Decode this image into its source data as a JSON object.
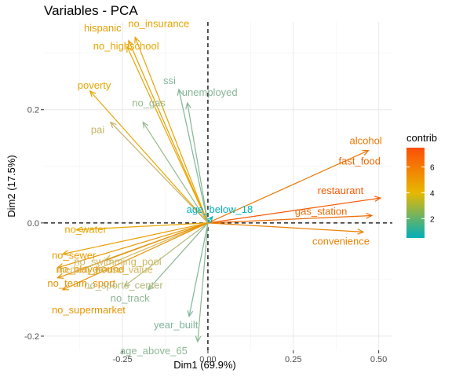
{
  "chart_data": {
    "type": "scatter",
    "subtype": "pca-variable-correlation-arrows",
    "title": "Variables - PCA",
    "xlabel": "Dim1 (69.9%)",
    "ylabel": "Dim2 (17.5%)",
    "xlim": [
      -0.48,
      0.54
    ],
    "ylim": [
      -0.225,
      0.355
    ],
    "x_ticks": [
      -0.25,
      0.0,
      0.25,
      0.5
    ],
    "x_tick_labels": [
      "-0.25",
      "0.00",
      "0.25",
      "0.50"
    ],
    "y_ticks": [
      -0.2,
      0.0,
      0.2
    ],
    "y_tick_labels": [
      "-0.2",
      "0.0",
      "0.2"
    ],
    "grid": true,
    "reference_lines": "dashed at x=0 and y=0",
    "legend": {
      "title": "contrib",
      "placement": "right",
      "type": "gradient",
      "range": [
        0.5,
        7.5
      ],
      "ticks": [
        2,
        4,
        6
      ],
      "colors": [
        "#00AFBB",
        "#E7B800",
        "#FC4E07"
      ]
    },
    "variables": [
      {
        "name": "alcohol",
        "x": 0.47,
        "y": 0.128,
        "contrib": 6.3,
        "color": "#e97804"
      },
      {
        "name": "fast_food",
        "x": 0.47,
        "y": 0.128,
        "contrib": 6.6,
        "color": "#ee6a05",
        "label_pos": "below",
        "arrow": false
      },
      {
        "name": "restaurant",
        "x": 0.505,
        "y": 0.044,
        "contrib": 7.2,
        "color": "#f65a06"
      },
      {
        "name": "gas_station",
        "x": 0.48,
        "y": 0.013,
        "contrib": 6.5,
        "color": "#ed6b05"
      },
      {
        "name": "convenience",
        "x": 0.455,
        "y": -0.016,
        "contrib": 6.1,
        "color": "#e98304"
      },
      {
        "name": "age_below_18",
        "x": 0.013,
        "y": 0.011,
        "contrib": 0.5,
        "color": "#00afbb"
      },
      {
        "name": "hispanic",
        "x": -0.232,
        "y": 0.322,
        "contrib": 5.1,
        "color": "#e8a002"
      },
      {
        "name": "no_insurance",
        "x": -0.213,
        "y": 0.328,
        "contrib": 5.4,
        "color": "#e9a202"
      },
      {
        "name": "no_highschool",
        "x": -0.237,
        "y": 0.312,
        "contrib": 5.0,
        "color": "#e8a502"
      },
      {
        "name": "poverty",
        "x": -0.345,
        "y": 0.233,
        "contrib": 4.8,
        "color": "#e6a704"
      },
      {
        "name": "ssi",
        "x": -0.085,
        "y": 0.236,
        "contrib": 1.8,
        "color": "#80b597"
      },
      {
        "name": "no_gas",
        "x": -0.19,
        "y": 0.178,
        "contrib": 2.2,
        "color": "#97b88b"
      },
      {
        "name": "unemployed",
        "x": -0.06,
        "y": 0.212,
        "contrib": 1.9,
        "color": "#85b594"
      },
      {
        "name": "pai",
        "x": -0.285,
        "y": 0.178,
        "contrib": 3.3,
        "color": "#c6b466"
      },
      {
        "name": "no_water",
        "x": -0.385,
        "y": -0.012,
        "contrib": 5.0,
        "color": "#e8a602"
      },
      {
        "name": "no_sewer",
        "x": -0.425,
        "y": -0.055,
        "contrib": 5.6,
        "color": "#e99d03"
      },
      {
        "name": "no_swimming_pool",
        "x": -0.3,
        "y": -0.065,
        "contrib": 3.5,
        "color": "#cdb760"
      },
      {
        "name": "no_playground",
        "x": -0.44,
        "y": -0.079,
        "contrib": 5.7,
        "color": "#e99703"
      },
      {
        "name": "median_house_value",
        "x": -0.33,
        "y": -0.083,
        "contrib": 3.9,
        "color": "#d6b558"
      },
      {
        "name": "no_team_sport",
        "x": -0.44,
        "y": -0.097,
        "contrib": 6.0,
        "color": "#e99103"
      },
      {
        "name": "no_sports_center",
        "x": -0.245,
        "y": -0.112,
        "contrib": 2.8,
        "color": "#b2b979"
      },
      {
        "name": "no_track",
        "x": -0.175,
        "y": -0.118,
        "contrib": 2.0,
        "color": "#8db593"
      },
      {
        "name": "no_supermarket",
        "x": -0.425,
        "y": -0.118,
        "contrib": 5.9,
        "color": "#e99403"
      },
      {
        "name": "year_built",
        "x": -0.055,
        "y": -0.165,
        "contrib": 1.8,
        "color": "#7fb599"
      },
      {
        "name": "age_above_65",
        "x": -0.03,
        "y": -0.21,
        "contrib": 2.1,
        "color": "#8cb794"
      }
    ]
  }
}
